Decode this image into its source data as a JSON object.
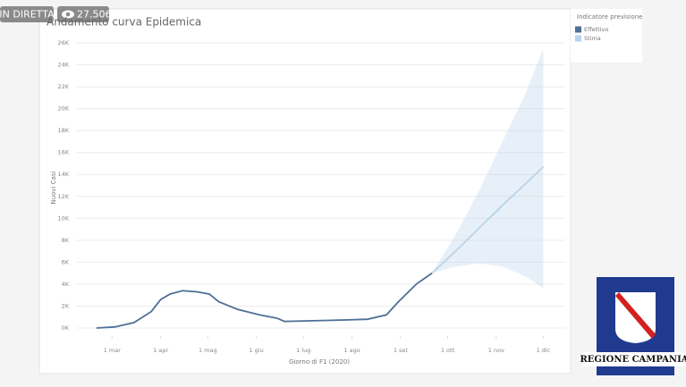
{
  "overlay": {
    "live": "IN DIRETTA",
    "viewers": "27.506",
    "logo": "REGIONE CAMPANIA"
  },
  "chart_data": {
    "type": "line",
    "title": "Andamento curva Epidemica",
    "x_label": "Giorno di F1 (2020)",
    "y_label": "Nuovi Casi",
    "legend_title": "Indicatore previsione",
    "xlim": [
      38,
      350
    ],
    "xticks": [
      {
        "value": 61,
        "label": "1 mar"
      },
      {
        "value": 92,
        "label": "1 apr"
      },
      {
        "value": 122,
        "label": "1 mag"
      },
      {
        "value": 153,
        "label": "1 giu"
      },
      {
        "value": 183,
        "label": "1 lug"
      },
      {
        "value": 214,
        "label": "1 ago"
      },
      {
        "value": 245,
        "label": "1 set"
      },
      {
        "value": 275,
        "label": "1 ott"
      },
      {
        "value": 306,
        "label": "1 nov"
      },
      {
        "value": 336,
        "label": "1 dic"
      }
    ],
    "ylim": [
      0,
      26
    ],
    "yticks": [
      {
        "value": 0,
        "label": "0K"
      },
      {
        "value": 2,
        "label": "2K"
      },
      {
        "value": 4,
        "label": "4K"
      },
      {
        "value": 6,
        "label": "6K"
      },
      {
        "value": 8,
        "label": "8K"
      },
      {
        "value": 10,
        "label": "10K"
      },
      {
        "value": 12,
        "label": "12K"
      },
      {
        "value": 14,
        "label": "14K"
      },
      {
        "value": 16,
        "label": "16K"
      },
      {
        "value": 18,
        "label": "18K"
      },
      {
        "value": 20,
        "label": "20K"
      },
      {
        "value": 22,
        "label": "22K"
      },
      {
        "value": 24,
        "label": "24K"
      },
      {
        "value": 26,
        "label": "26K"
      }
    ],
    "grid": true,
    "series": [
      {
        "name": "Effettivo",
        "color": "#4e6f96",
        "x": [
          51,
          63,
          75,
          86,
          92,
          98,
          106,
          115,
          123,
          129,
          141,
          155,
          166,
          171,
          201,
          224,
          236,
          243,
          255,
          265
        ],
        "values": [
          0,
          0.1,
          0.5,
          1.5,
          2.6,
          3.1,
          3.4,
          3.3,
          3.1,
          2.4,
          1.7,
          1.2,
          0.9,
          0.6,
          0.7,
          0.8,
          1.2,
          2.3,
          4.0,
          5.0
        ]
      },
      {
        "name": "Stima",
        "color": "#b9d3ea",
        "x": [
          265,
          280,
          295,
          310,
          325,
          336
        ],
        "values": [
          5,
          7,
          9.1,
          11.2,
          13.2,
          14.7
        ],
        "upper": [
          5,
          8.5,
          12.5,
          17,
          21.5,
          25.5
        ],
        "lower": [
          5,
          5.6,
          5.9,
          5.6,
          4.7,
          3.6
        ]
      }
    ]
  }
}
